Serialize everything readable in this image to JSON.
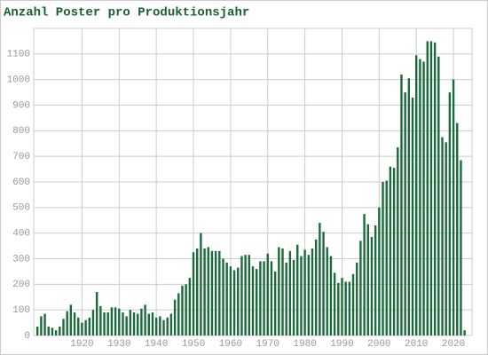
{
  "chart_data": {
    "type": "bar",
    "title": "Anzahl Poster pro Produktionsjahr",
    "color": "#1a6b3a",
    "grid": true,
    "x": [
      1908,
      1909,
      1910,
      1911,
      1912,
      1913,
      1914,
      1915,
      1916,
      1917,
      1918,
      1919,
      1920,
      1921,
      1922,
      1923,
      1924,
      1925,
      1926,
      1927,
      1928,
      1929,
      1930,
      1931,
      1932,
      1933,
      1934,
      1935,
      1936,
      1937,
      1938,
      1939,
      1940,
      1941,
      1942,
      1943,
      1944,
      1945,
      1946,
      1947,
      1948,
      1949,
      1950,
      1951,
      1952,
      1953,
      1954,
      1955,
      1956,
      1957,
      1958,
      1959,
      1960,
      1961,
      1962,
      1963,
      1964,
      1965,
      1966,
      1967,
      1968,
      1969,
      1970,
      1971,
      1972,
      1973,
      1974,
      1975,
      1976,
      1977,
      1978,
      1979,
      1980,
      1981,
      1982,
      1983,
      1984,
      1985,
      1986,
      1987,
      1988,
      1989,
      1990,
      1991,
      1992,
      1993,
      1994,
      1995,
      1996,
      1997,
      1998,
      1999,
      2000,
      2001,
      2002,
      2003,
      2004,
      2005,
      2006,
      2007,
      2008,
      2009,
      2010,
      2011,
      2012,
      2013,
      2014,
      2015,
      2016,
      2017,
      2018,
      2019,
      2020,
      2021,
      2022,
      2023
    ],
    "values": [
      35,
      75,
      85,
      35,
      30,
      20,
      35,
      65,
      95,
      120,
      90,
      70,
      50,
      60,
      70,
      100,
      170,
      115,
      90,
      90,
      110,
      110,
      105,
      90,
      75,
      100,
      90,
      85,
      105,
      120,
      85,
      90,
      70,
      75,
      60,
      70,
      85,
      140,
      165,
      195,
      200,
      225,
      325,
      340,
      400,
      340,
      345,
      330,
      330,
      330,
      300,
      285,
      270,
      255,
      265,
      310,
      315,
      315,
      270,
      260,
      290,
      290,
      320,
      290,
      250,
      345,
      340,
      285,
      330,
      295,
      355,
      310,
      335,
      315,
      340,
      375,
      440,
      405,
      345,
      310,
      245,
      205,
      225,
      210,
      210,
      240,
      285,
      370,
      475,
      435,
      385,
      430,
      500,
      600,
      605,
      660,
      655,
      735,
      1020,
      950,
      1005,
      930,
      1095,
      1080,
      1070,
      1150,
      1150,
      1145,
      1090,
      775,
      755,
      950,
      1000,
      830,
      685,
      20
    ],
    "xlim": [
      1907,
      2025
    ],
    "xticks": [
      1920,
      1930,
      1940,
      1950,
      1960,
      1970,
      1980,
      1990,
      2000,
      2010,
      2020
    ],
    "ylim": [
      0,
      1200
    ],
    "yticks": [
      0,
      100,
      200,
      300,
      400,
      500,
      600,
      700,
      800,
      900,
      1000,
      1100
    ]
  }
}
